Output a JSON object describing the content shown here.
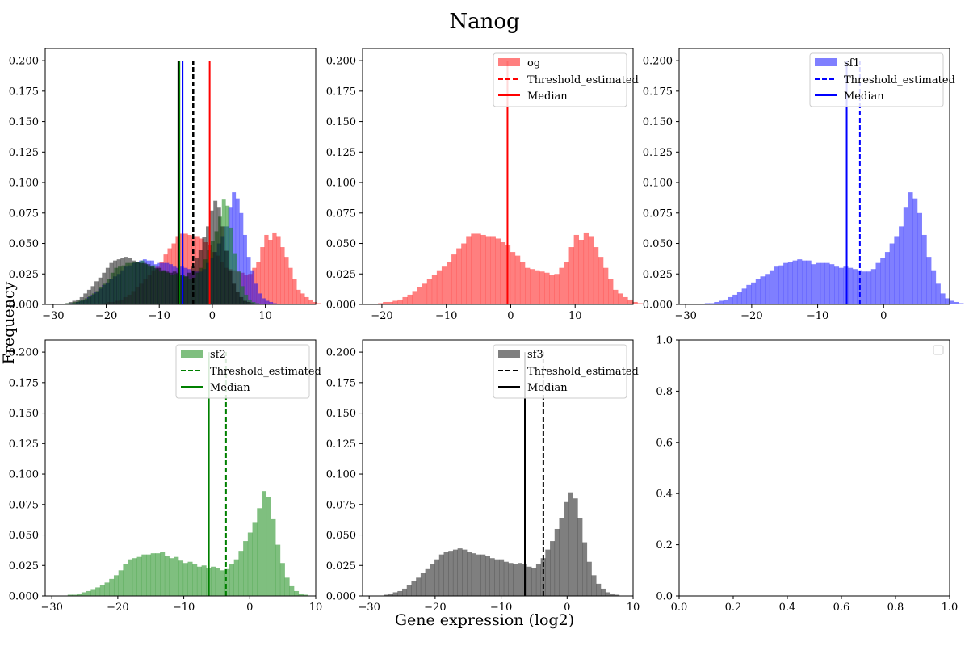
{
  "figure": {
    "suptitle": "Nanog",
    "xlabel": "Gene expression (log2)",
    "ylabel": "Frequency"
  },
  "legend_labels": {
    "threshold": "Threshold_estimated",
    "median": "Median"
  },
  "chart_data": [
    {
      "type": "histogram-overlay",
      "title": "",
      "xlim": [
        -31.5,
        19.5
      ],
      "ylim": [
        0,
        0.21
      ],
      "xticks": [
        -30,
        -20,
        -10,
        0,
        10
      ],
      "yticks": [
        0.0,
        0.025,
        0.05,
        0.075,
        0.1,
        0.125,
        0.15,
        0.175,
        0.2
      ],
      "legend": null,
      "series_refs": [
        "og",
        "sf1",
        "sf2",
        "sf3"
      ],
      "draw_order": [
        "og",
        "sf1",
        "sf2",
        "sf3"
      ],
      "threshold_lines": [
        {
          "series": "sf1",
          "x": -3.6
        },
        {
          "series": "sf2",
          "x": -3.6
        },
        {
          "series": "sf3",
          "x": -3.6
        }
      ],
      "median_lines": [
        {
          "series": "og",
          "x": -0.5
        },
        {
          "series": "sf1",
          "x": -5.6
        },
        {
          "series": "sf2",
          "x": -6.2
        },
        {
          "series": "sf3",
          "x": -6.4
        }
      ]
    },
    {
      "type": "histogram",
      "series": "og",
      "xlim": [
        -23,
        19
      ],
      "ylim": [
        0,
        0.21
      ],
      "xticks": [
        -20,
        -10,
        0,
        10
      ],
      "yticks": [
        0.0,
        0.025,
        0.05,
        0.075,
        0.1,
        0.125,
        0.15,
        0.175,
        0.2
      ],
      "legend": "upper right",
      "median": -0.5
    },
    {
      "type": "histogram",
      "series": "sf1",
      "xlim": [
        -31,
        10
      ],
      "ylim": [
        0,
        0.21
      ],
      "xticks": [
        -30,
        -20,
        -10,
        0
      ],
      "yticks": [
        0.0,
        0.025,
        0.05,
        0.075,
        0.1,
        0.125,
        0.15,
        0.175,
        0.2
      ],
      "legend": "upper right",
      "threshold": -3.6,
      "median": -5.6
    },
    {
      "type": "histogram",
      "series": "sf2",
      "xlim": [
        -31,
        10
      ],
      "ylim": [
        0,
        0.21
      ],
      "xticks": [
        -30,
        -20,
        -10,
        0,
        10
      ],
      "yticks": [
        0.0,
        0.025,
        0.05,
        0.075,
        0.1,
        0.125,
        0.15,
        0.175,
        0.2
      ],
      "legend": "upper right",
      "threshold": -3.6,
      "median": -6.2
    },
    {
      "type": "histogram",
      "series": "sf3",
      "xlim": [
        -31,
        10
      ],
      "ylim": [
        0,
        0.21
      ],
      "xticks": [
        -30,
        -20,
        -10,
        0,
        10
      ],
      "yticks": [
        0.0,
        0.025,
        0.05,
        0.075,
        0.1,
        0.125,
        0.15,
        0.175,
        0.2
      ],
      "legend": "upper right",
      "threshold": -3.6,
      "median": -6.4
    },
    {
      "type": "empty",
      "xlim": [
        0,
        1
      ],
      "ylim": [
        0,
        1
      ],
      "xticks": [
        0.0,
        0.2,
        0.4,
        0.6,
        0.8,
        1.0
      ],
      "yticks": [
        0.0,
        0.2,
        0.4,
        0.6,
        0.8,
        1.0
      ],
      "legend": "empty box upper right"
    }
  ],
  "series": {
    "og": {
      "name": "og",
      "color": "#ff0000",
      "alpha": 0.5,
      "x_start": -20.6,
      "bin_width": 0.76,
      "values": [
        0.001,
        0.002,
        0.002,
        0.003,
        0.004,
        0.006,
        0.008,
        0.011,
        0.014,
        0.017,
        0.021,
        0.024,
        0.028,
        0.031,
        0.035,
        0.041,
        0.046,
        0.05,
        0.056,
        0.058,
        0.058,
        0.057,
        0.056,
        0.056,
        0.054,
        0.051,
        0.049,
        0.043,
        0.04,
        0.035,
        0.03,
        0.029,
        0.028,
        0.027,
        0.026,
        0.024,
        0.025,
        0.03,
        0.035,
        0.047,
        0.057,
        0.053,
        0.059,
        0.056,
        0.047,
        0.039,
        0.03,
        0.021,
        0.012,
        0.009,
        0.006,
        0.004,
        0.002,
        0.001
      ]
    },
    "sf1": {
      "name": "sf1",
      "color": "#0000ff",
      "alpha": 0.5,
      "x_start": -27.1,
      "bin_width": 0.7,
      "values": [
        0.001,
        0.001,
        0.002,
        0.003,
        0.004,
        0.006,
        0.008,
        0.01,
        0.013,
        0.016,
        0.018,
        0.021,
        0.023,
        0.025,
        0.028,
        0.031,
        0.032,
        0.034,
        0.035,
        0.036,
        0.037,
        0.036,
        0.036,
        0.033,
        0.034,
        0.034,
        0.034,
        0.033,
        0.031,
        0.03,
        0.031,
        0.03,
        0.029,
        0.028,
        0.027,
        0.027,
        0.029,
        0.034,
        0.038,
        0.043,
        0.05,
        0.056,
        0.064,
        0.08,
        0.092,
        0.087,
        0.075,
        0.057,
        0.039,
        0.028,
        0.017,
        0.009,
        0.005,
        0.003,
        0.002,
        0.001
      ]
    },
    "sf2": {
      "name": "sf2",
      "color": "#008000",
      "alpha": 0.5,
      "x_start": -27.6,
      "bin_width": 0.7,
      "values": [
        0.001,
        0.001,
        0.002,
        0.003,
        0.004,
        0.005,
        0.007,
        0.009,
        0.011,
        0.014,
        0.017,
        0.021,
        0.026,
        0.03,
        0.031,
        0.032,
        0.034,
        0.034,
        0.035,
        0.035,
        0.036,
        0.033,
        0.031,
        0.032,
        0.029,
        0.027,
        0.028,
        0.026,
        0.024,
        0.025,
        0.023,
        0.024,
        0.023,
        0.021,
        0.022,
        0.026,
        0.03,
        0.037,
        0.045,
        0.052,
        0.06,
        0.072,
        0.086,
        0.081,
        0.063,
        0.042,
        0.027,
        0.015,
        0.008,
        0.004,
        0.002,
        0.001
      ]
    },
    "sf3": {
      "name": "sf3",
      "color": "#000000",
      "alpha": 0.5,
      "x_start": -27.8,
      "bin_width": 0.7,
      "values": [
        0.001,
        0.002,
        0.003,
        0.004,
        0.006,
        0.009,
        0.012,
        0.015,
        0.019,
        0.022,
        0.026,
        0.03,
        0.034,
        0.036,
        0.037,
        0.038,
        0.039,
        0.038,
        0.036,
        0.035,
        0.034,
        0.034,
        0.033,
        0.031,
        0.03,
        0.03,
        0.028,
        0.027,
        0.026,
        0.027,
        0.026,
        0.024,
        0.023,
        0.026,
        0.031,
        0.038,
        0.045,
        0.055,
        0.064,
        0.077,
        0.085,
        0.08,
        0.064,
        0.044,
        0.028,
        0.017,
        0.01,
        0.006,
        0.003,
        0.002,
        0.001
      ]
    }
  }
}
